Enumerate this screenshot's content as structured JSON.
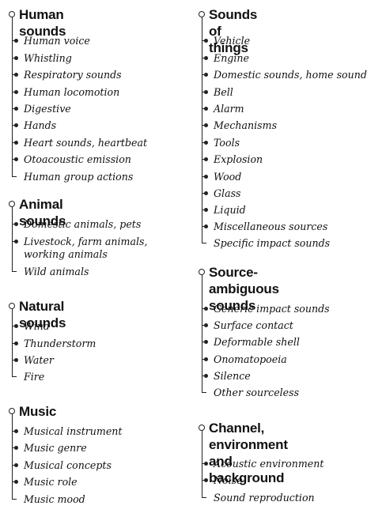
{
  "groups": [
    {
      "title": "Human sounds",
      "items": [
        "Human voice",
        "Whistling",
        "Respiratory sounds",
        "Human locomotion",
        "Digestive",
        "Hands",
        "Heart sounds, heartbeat",
        "Otoacoustic emission",
        "Human group actions"
      ]
    },
    {
      "title": "Animal sounds",
      "items": [
        "Domestic animals, pets",
        "Livestock, farm animals,\n   working animals",
        "Wild animals"
      ]
    },
    {
      "title": "Natural sounds",
      "items": [
        "Wind",
        "Thunderstorm",
        "Water",
        "Fire"
      ]
    },
    {
      "title": "Music",
      "items": [
        "Musical instrument",
        "Music genre",
        "Musical concepts",
        "Music role",
        "Music mood"
      ]
    },
    {
      "title": "Sounds of things",
      "items": [
        "Vehicle",
        "Engine",
        "Domestic sounds, home sounds",
        "Bell",
        "Alarm",
        "Mechanisms",
        "Tools",
        "Explosion",
        "Wood",
        "Glass",
        "Liquid",
        "Miscellaneous sources",
        "Specific impact sounds"
      ]
    },
    {
      "title": "Source-ambiguous\n   sounds",
      "items": [
        "Generic impact sounds",
        "Surface contact",
        "Deformable shell",
        "Onomatopoeia",
        "Silence",
        "Other sourceless"
      ]
    },
    {
      "title": "Channel, environment\n   and background",
      "items": [
        "Acoustic environment",
        "Noise",
        "Sound reproduction"
      ]
    }
  ]
}
